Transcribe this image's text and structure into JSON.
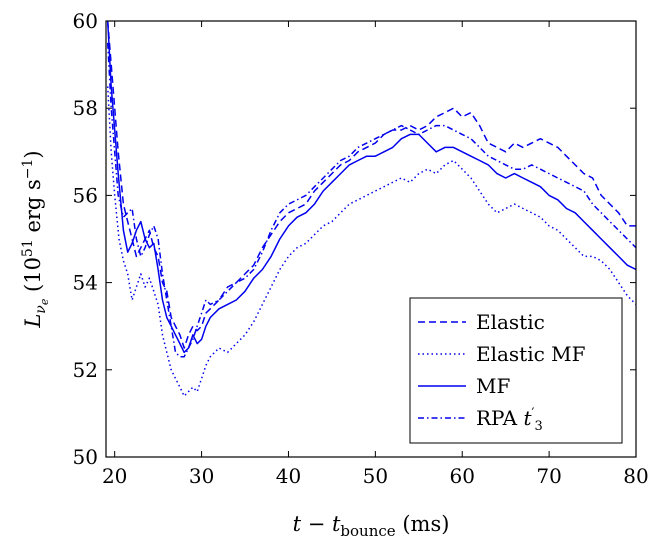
{
  "chart_data": {
    "type": "line",
    "title": "",
    "xlabel": "t − t_bounce (ms)",
    "ylabel": "L_νe (10^51 erg s^−1)",
    "xlim": [
      19,
      80
    ],
    "ylim": [
      50,
      60
    ],
    "xticks": [
      "20",
      "30",
      "40",
      "50",
      "60",
      "70",
      "80"
    ],
    "yticks": [
      "50",
      "52",
      "54",
      "56",
      "58",
      "60"
    ],
    "grid": false,
    "legend_position": "bottom-right",
    "line_color": "#0000ee",
    "series": [
      {
        "name": "Elastic",
        "style": "dashed",
        "x": [
          19.2,
          19.6,
          20.0,
          20.4,
          21.0,
          21.5,
          22.0,
          22.5,
          23.0,
          23.5,
          24.0,
          24.5,
          25.0,
          25.5,
          26.0,
          26.5,
          27.0,
          27.5,
          28.0,
          28.5,
          29.0,
          29.5,
          30.0,
          30.5,
          31.0,
          32.0,
          33.0,
          34.0,
          35.0,
          36.0,
          37.0,
          38.0,
          39.0,
          40.0,
          41.0,
          42.0,
          43.0,
          44.0,
          45.0,
          46.0,
          47.0,
          48.0,
          49.0,
          50.0,
          51.0,
          52.0,
          53.0,
          54.0,
          55.0,
          56.0,
          57.0,
          58.0,
          59.0,
          60.0,
          61.0,
          62.0,
          63.0,
          64.0,
          65.0,
          66.0,
          67.0,
          68.0,
          69.0,
          70.0,
          71.0,
          72.0,
          73.0,
          74.0,
          75.0,
          76.0,
          77.0,
          78.0,
          79.0,
          80.0
        ],
        "y": [
          60.0,
          59.0,
          58.0,
          57.0,
          55.8,
          55.4,
          55.0,
          54.6,
          54.8,
          55.0,
          55.2,
          54.8,
          54.6,
          54.0,
          53.8,
          53.2,
          53.0,
          52.8,
          52.5,
          52.8,
          53.0,
          52.9,
          53.0,
          53.3,
          53.4,
          53.6,
          53.9,
          54.0,
          54.2,
          54.4,
          54.8,
          55.1,
          55.4,
          55.6,
          55.7,
          55.8,
          56.1,
          56.3,
          56.5,
          56.7,
          56.8,
          57.0,
          57.1,
          57.2,
          57.4,
          57.5,
          57.5,
          57.6,
          57.5,
          57.6,
          57.8,
          57.9,
          58.0,
          57.8,
          57.9,
          57.6,
          57.2,
          57.1,
          57.0,
          57.2,
          57.1,
          57.2,
          57.3,
          57.2,
          57.1,
          56.9,
          56.7,
          56.5,
          56.4,
          56.0,
          55.8,
          55.6,
          55.3,
          55.3
        ]
      },
      {
        "name": "Elastic MF",
        "style": "dotted",
        "x": [
          19.2,
          19.6,
          20.0,
          20.5,
          21.0,
          21.5,
          22.0,
          22.5,
          23.0,
          23.5,
          24.0,
          24.5,
          25.0,
          25.5,
          26.0,
          26.5,
          27.0,
          27.5,
          28.0,
          28.5,
          29.0,
          29.5,
          30.0,
          30.5,
          31.0,
          32.0,
          33.0,
          34.0,
          35.0,
          36.0,
          37.0,
          38.0,
          39.0,
          40.0,
          41.0,
          42.0,
          43.0,
          44.0,
          45.0,
          46.0,
          47.0,
          48.0,
          49.0,
          50.0,
          51.0,
          52.0,
          53.0,
          54.0,
          55.0,
          56.0,
          57.0,
          58.0,
          59.0,
          60.0,
          61.0,
          62.0,
          63.0,
          64.0,
          65.0,
          66.0,
          67.0,
          68.0,
          69.0,
          70.0,
          71.0,
          72.0,
          73.0,
          74.0,
          75.0,
          76.0,
          77.0,
          78.0,
          79.0,
          80.0
        ],
        "y": [
          58.5,
          57.0,
          56.0,
          55.0,
          54.5,
          54.2,
          53.6,
          53.9,
          54.2,
          53.9,
          54.1,
          53.8,
          53.5,
          52.8,
          52.4,
          52.0,
          51.8,
          51.6,
          51.4,
          51.5,
          51.6,
          51.5,
          51.8,
          52.1,
          52.3,
          52.5,
          52.4,
          52.6,
          52.8,
          53.1,
          53.5,
          53.9,
          54.3,
          54.6,
          54.8,
          54.9,
          55.1,
          55.3,
          55.4,
          55.6,
          55.8,
          55.9,
          56.0,
          56.1,
          56.2,
          56.3,
          56.4,
          56.3,
          56.5,
          56.6,
          56.5,
          56.7,
          56.8,
          56.6,
          56.4,
          56.1,
          55.8,
          55.6,
          55.7,
          55.8,
          55.7,
          55.6,
          55.5,
          55.3,
          55.2,
          55.0,
          54.8,
          54.6,
          54.6,
          54.5,
          54.3,
          54.0,
          53.7,
          53.5
        ]
      },
      {
        "name": "MF",
        "style": "solid",
        "x": [
          19.2,
          19.6,
          20.0,
          20.4,
          21.0,
          21.5,
          22.0,
          22.5,
          23.0,
          23.5,
          24.0,
          24.5,
          25.0,
          25.5,
          26.0,
          26.5,
          27.0,
          27.5,
          28.0,
          28.5,
          29.0,
          29.5,
          30.0,
          30.5,
          31.0,
          32.0,
          33.0,
          34.0,
          35.0,
          36.0,
          37.0,
          38.0,
          39.0,
          40.0,
          41.0,
          42.0,
          43.0,
          44.0,
          45.0,
          46.0,
          47.0,
          48.0,
          49.0,
          50.0,
          51.0,
          52.0,
          53.0,
          54.0,
          55.0,
          56.0,
          57.0,
          58.0,
          59.0,
          60.0,
          61.0,
          62.0,
          63.0,
          64.0,
          65.0,
          66.0,
          67.0,
          68.0,
          69.0,
          70.0,
          71.0,
          72.0,
          73.0,
          74.0,
          75.0,
          76.0,
          77.0,
          78.0,
          79.0,
          80.0
        ],
        "y": [
          60.0,
          58.5,
          57.5,
          56.5,
          55.2,
          54.7,
          54.9,
          55.2,
          55.4,
          55.0,
          54.8,
          54.9,
          54.3,
          53.6,
          53.2,
          53.0,
          52.8,
          52.6,
          52.4,
          52.5,
          52.8,
          52.6,
          52.7,
          53.0,
          53.2,
          53.4,
          53.5,
          53.6,
          53.8,
          54.1,
          54.3,
          54.6,
          55.0,
          55.3,
          55.5,
          55.6,
          55.8,
          56.1,
          56.3,
          56.5,
          56.7,
          56.8,
          56.9,
          56.9,
          57.0,
          57.1,
          57.3,
          57.4,
          57.4,
          57.2,
          57.0,
          57.1,
          57.1,
          57.0,
          56.9,
          56.8,
          56.7,
          56.5,
          56.4,
          56.5,
          56.4,
          56.3,
          56.2,
          56.0,
          55.9,
          55.7,
          55.6,
          55.4,
          55.2,
          55.0,
          54.8,
          54.6,
          54.4,
          54.3
        ]
      },
      {
        "name": "RPA t′3",
        "style": "dashdotted",
        "x": [
          19.2,
          19.6,
          20.0,
          20.4,
          21.0,
          21.5,
          22.0,
          22.5,
          23.0,
          23.5,
          24.0,
          24.5,
          25.0,
          25.5,
          26.0,
          26.5,
          27.0,
          27.5,
          28.0,
          28.5,
          29.0,
          29.5,
          30.0,
          30.5,
          31.0,
          32.0,
          33.0,
          34.0,
          35.0,
          36.0,
          37.0,
          38.0,
          39.0,
          40.0,
          41.0,
          42.0,
          43.0,
          44.0,
          45.0,
          46.0,
          47.0,
          48.0,
          49.0,
          50.0,
          51.0,
          52.0,
          53.0,
          54.0,
          55.0,
          56.0,
          57.0,
          58.0,
          59.0,
          60.0,
          61.0,
          62.0,
          63.0,
          64.0,
          65.0,
          66.0,
          67.0,
          68.0,
          69.0,
          70.0,
          71.0,
          72.0,
          73.0,
          74.0,
          75.0,
          76.0,
          77.0,
          78.0,
          79.0,
          80.0
        ],
        "y": [
          59.5,
          58.0,
          57.0,
          56.0,
          55.5,
          55.6,
          55.7,
          55.0,
          54.6,
          54.8,
          55.1,
          55.3,
          55.0,
          54.2,
          53.6,
          53.0,
          52.4,
          52.3,
          52.3,
          52.5,
          52.7,
          53.0,
          53.3,
          53.6,
          53.5,
          53.6,
          53.8,
          54.0,
          54.1,
          54.3,
          54.7,
          55.2,
          55.6,
          55.8,
          55.9,
          56.0,
          56.2,
          56.4,
          56.6,
          56.8,
          56.9,
          57.1,
          57.2,
          57.3,
          57.4,
          57.5,
          57.6,
          57.5,
          57.4,
          57.5,
          57.6,
          57.6,
          57.5,
          57.4,
          57.3,
          57.1,
          56.9,
          56.8,
          56.7,
          56.6,
          56.6,
          56.7,
          56.6,
          56.5,
          56.4,
          56.3,
          56.2,
          56.1,
          55.8,
          55.6,
          55.4,
          55.2,
          55.0,
          54.8
        ]
      }
    ]
  }
}
